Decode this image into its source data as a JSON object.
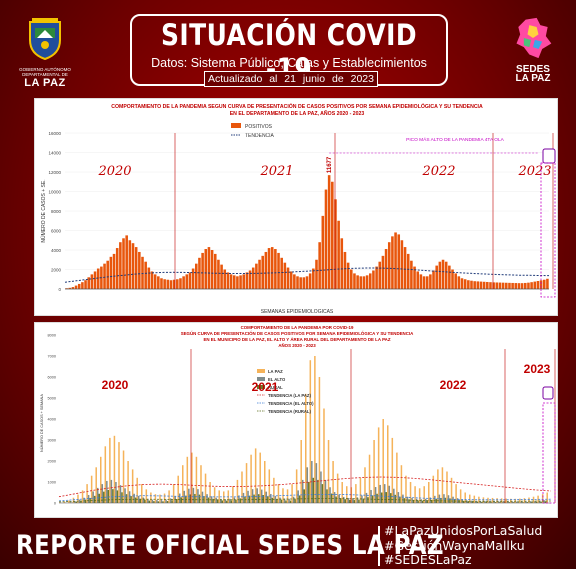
{
  "header": {
    "title": "SITUACIÓN COVID -19",
    "subtitle": "Datos: Sistema Público, Cajas y Establecimientos Privados",
    "updated": "Actualizado al 21 junio de 2023",
    "left_logo": {
      "small_text": "GOBIERNO AUTÓNOMO DEPARTAMENTAL DE",
      "big_text": "LA PAZ",
      "icon": "shield-emblem-icon"
    },
    "right_logo": {
      "line1": "SEDES",
      "line2": "LA PAZ",
      "icon": "sedes-map-icon"
    }
  },
  "footer": {
    "main": "REPORTE OFICIAL SEDES LA PAZ",
    "hashtags": [
      "#LaPazUnidosPorLaSalud",
      "#GestiónWaynaMallku",
      "#SEDESLaPaz"
    ]
  },
  "colors": {
    "bar_orange": "#e8560c",
    "trend_navy": "#1f3a78",
    "annotation_red": "#c00000",
    "la_paz": "#f5b35a",
    "el_alto": "#7f8c8d",
    "rural": "#6b7a2a"
  },
  "chart_data": [
    {
      "type": "bar",
      "title": "COMPORTAMIENTO DE LA PANDEMIA SEGUN CURVA DE PRESENTACIÓN DE CASOS POSITIVOS POR SEMANA EPIDEMIOLÓGICA Y SU TENDENCIA",
      "subtitle": "EN EL DEPARTAMENTO DE LA PAZ, AÑOS 2020 - 2023",
      "xlabel": "SEMANAS EPIDEMIOLOGICAS",
      "ylabel": "NÚMERO DE CASOS + SE.",
      "ylim": [
        0,
        16000
      ],
      "yticks": [
        0,
        2000,
        4000,
        6000,
        8000,
        10000,
        12000,
        14000,
        16000
      ],
      "legend": [
        "POSITIVOS",
        "TENDENCIA"
      ],
      "legend_position": "top-center",
      "years": [
        "2020",
        "2021",
        "2022",
        "2023"
      ],
      "peak_label": "11677",
      "annotation": "PICO MÁS ALTO DE LA PANDEMIA 4TA OLA",
      "series": [
        {
          "name": "POSITIVOS",
          "values": [
            80,
            120,
            200,
            350,
            520,
            700,
            900,
            1200,
            1500,
            1800,
            2100,
            2300,
            2600,
            2900,
            3300,
            3600,
            4200,
            4800,
            5200,
            5500,
            5000,
            4700,
            4300,
            3800,
            3300,
            2800,
            2200,
            1800,
            1500,
            1300,
            1100,
            1000,
            950,
            900,
            950,
            1000,
            1100,
            1300,
            1500,
            1700,
            2100,
            2600,
            3200,
            3700,
            4100,
            4300,
            4000,
            3600,
            3000,
            2500,
            2000,
            1700,
            1500,
            1400,
            1300,
            1400,
            1500,
            1700,
            1900,
            2200,
            2600,
            3000,
            3400,
            3800,
            4200,
            4300,
            4100,
            3700,
            3200,
            2700,
            2200,
            1800,
            1500,
            1300,
            1200,
            1200,
            1300,
            1600,
            2100,
            3000,
            4800,
            7500,
            10200,
            11677,
            11000,
            9200,
            7000,
            5200,
            3800,
            2700,
            2000,
            1600,
            1400,
            1300,
            1300,
            1400,
            1600,
            1900,
            2300,
            2800,
            3400,
            4100,
            4800,
            5400,
            5800,
            5600,
            5000,
            4300,
            3600,
            2900,
            2300,
            1800,
            1500,
            1300,
            1300,
            1500,
            1900,
            2400,
            2800,
            3000,
            2800,
            2400,
            2000,
            1600,
            1300,
            1100,
            1000,
            900,
            850,
            800,
            780,
            760,
            740,
            720,
            700,
            680,
            670,
            660,
            650,
            640,
            630,
            620,
            610,
            600,
            600,
            620,
            650,
            700,
            760,
            820,
            880,
            950,
            1050
          ],
          "tendencia": [
            700,
            820,
            950,
            1080,
            1200,
            1320,
            1420,
            1520,
            1600,
            1660,
            1700,
            1710,
            1700,
            1680,
            1650,
            1620,
            1600,
            1590,
            1590,
            1600,
            1620,
            1650,
            1690,
            1740,
            1800,
            1860,
            1930,
            2000,
            2060,
            2110,
            2140,
            2150,
            2140,
            2110,
            2060,
            2000,
            1930,
            1860,
            1790,
            1720,
            1660,
            1610,
            1560,
            1520,
            1480,
            1450,
            1420,
            1400,
            1380,
            1370
          ]
        }
      ]
    },
    {
      "type": "bar",
      "title": "COMPORTAMIENTO DE LA PANDEMIA POR COVID-19",
      "subtitle": "SEGÚN CURVA DE PRESENTACIÓN DE CASOS POSITIVOS POR SEMANA EPIDEMIOLÓGICA Y SU TENDENCIA",
      "subtitle2": "EN EL MUNICIPIO DE LA PAZ, EL ALTO Y ÁREA RURAL DEL DEPARTAMENTO DE LA PAZ",
      "subtitle3": "AÑOS 2020 - 2023",
      "ylabel": "NÚMERO DE CASOS + SEMANA",
      "ylim": [
        0,
        8000
      ],
      "yticks": [
        0,
        500,
        1000,
        1500,
        2000,
        2500,
        3000,
        3500,
        4000,
        4500,
        5000,
        5500,
        6000,
        6500,
        7000,
        7500,
        8000
      ],
      "legend": [
        "LA PAZ",
        "EL ALTO",
        "RURAL",
        "TENDENCIA (LA PAZ)",
        "TENDENCIA (EL ALTO)",
        "TENDENCIA (RURAL)"
      ],
      "legend_position": "center",
      "years": [
        "2020",
        "2021",
        "2022",
        "2023"
      ],
      "series": [
        {
          "name": "LA PAZ",
          "values": [
            30,
            60,
            120,
            250,
            400,
            600,
            900,
            1300,
            1700,
            2200,
            2700,
            3100,
            3200,
            2900,
            2500,
            2000,
            1600,
            1200,
            900,
            650,
            500,
            420,
            400,
            450,
            600,
            900,
            1300,
            1800,
            2200,
            2400,
            2200,
            1800,
            1400,
            1000,
            750,
            600,
            550,
            600,
            800,
            1100,
            1500,
            1900,
            2300,
            2600,
            2400,
            2000,
            1600,
            1200,
            900,
            700,
            650,
            900,
            1600,
            3000,
            5200,
            6800,
            7000,
            6000,
            4500,
            3000,
            2000,
            1400,
            1000,
            800,
            750,
            900,
            1200,
            1700,
            2300,
            3000,
            3600,
            4000,
            3700,
            3100,
            2400,
            1800,
            1300,
            1000,
            800,
            700,
            800,
            1000,
            1300,
            1600,
            1700,
            1500,
            1200,
            900,
            650,
            500,
            400,
            350,
            300,
            270,
            250,
            240,
            230,
            220,
            210,
            200,
            200,
            210,
            230,
            260,
            300,
            350,
            420,
            500
          ]
        },
        {
          "name": "EL ALTO",
          "values": [
            10,
            20,
            40,
            90,
            160,
            250,
            380,
            550,
            720,
            900,
            1050,
            1100,
            1000,
            850,
            700,
            560,
            440,
            340,
            260,
            200,
            160,
            140,
            140,
            160,
            220,
            320,
            450,
            580,
            680,
            720,
            660,
            540,
            420,
            320,
            250,
            200,
            180,
            200,
            260,
            360,
            480,
            580,
            660,
            700,
            640,
            540,
            430,
            330,
            260,
            210,
            200,
            300,
            600,
            1100,
            1700,
            2000,
            1900,
            1500,
            1100,
            750,
            520,
            380,
            290,
            240,
            230,
            270,
            360,
            480,
            620,
            760,
            860,
            900,
            820,
            680,
            520,
            400,
            300,
            240,
            200,
            180,
            200,
            260,
            340,
            400,
            420,
            370,
            300,
            230,
            170,
            130,
            110,
            100,
            90,
            85,
            80,
            78,
            75,
            72,
            70,
            68,
            68,
            70,
            75,
            85,
            95,
            110,
            130
          ]
        },
        {
          "name": "RURAL",
          "values": [
            5,
            10,
            25,
            55,
            100,
            160,
            240,
            340,
            440,
            540,
            620,
            660,
            600,
            510,
            420,
            330,
            260,
            200,
            150,
            115,
            90,
            80,
            80,
            95,
            130,
            190,
            270,
            350,
            410,
            430,
            400,
            330,
            260,
            200,
            150,
            120,
            110,
            120,
            160,
            220,
            290,
            350,
            400,
            420,
            380,
            320,
            250,
            190,
            150,
            120,
            115,
            180,
            360,
            650,
            1000,
            1200,
            1100,
            900,
            650,
            450,
            310,
            230,
            180,
            150,
            140,
            160,
            210,
            280,
            360,
            440,
            500,
            520,
            470,
            390,
            300,
            230,
            175,
            140,
            120,
            110,
            120,
            150,
            200,
            240,
            250,
            220,
            180,
            140,
            100,
            80,
            65,
            58,
            52,
            48,
            45,
            43,
            42,
            40,
            39,
            38,
            38,
            40,
            43,
            48,
            55,
            64,
            75
          ]
        }
      ],
      "trends": {
        "TENDENCIA (LA PAZ)": [
          300,
          450,
          600,
          720,
          820,
          880,
          900,
          880,
          840,
          800,
          780,
          790,
          820,
          870,
          940,
          1020,
          1100,
          1170,
          1220,
          1240,
          1220,
          1170,
          1100,
          1020,
          940,
          860,
          780,
          700,
          630,
          570
        ],
        "TENDENCIA (EL ALTO)": [
          100,
          160,
          230,
          290,
          330,
          350,
          340,
          320,
          300,
          290,
          290,
          300,
          320,
          350,
          380,
          400,
          410,
          400,
          370,
          330,
          290,
          250,
          210,
          180,
          160,
          150,
          150,
          160,
          170,
          180
        ],
        "TENDENCIA (RURAL)": [
          50,
          80,
          120,
          150,
          170,
          180,
          175,
          165,
          155,
          150,
          150,
          155,
          165,
          180,
          195,
          205,
          210,
          205,
          190,
          170,
          150,
          130,
          110,
          95,
          85,
          80,
          80,
          85,
          90,
          95
        ]
      }
    }
  ]
}
